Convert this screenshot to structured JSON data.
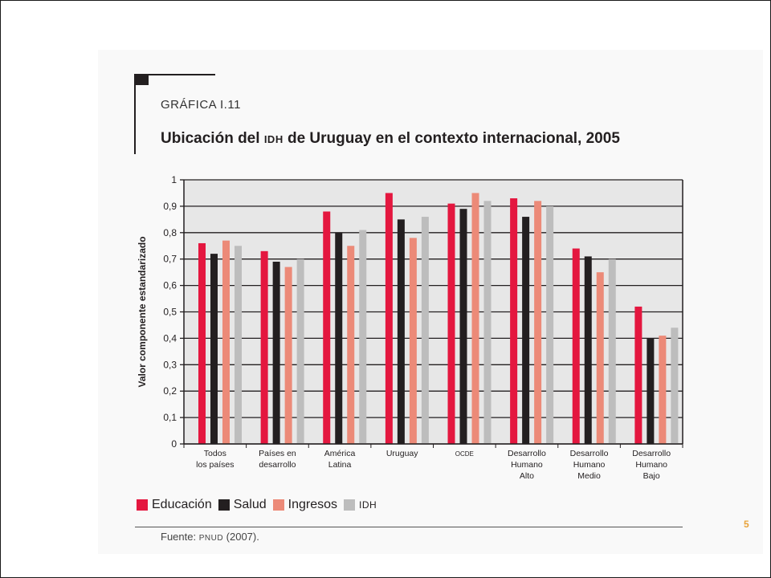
{
  "figure": {
    "label": "GRÁFICA I.11",
    "title_part1": "Ubicación del ",
    "title_part2": "IDH",
    "title_part3": " de Uruguay en el contexto internacional, 2005",
    "source_part1": "Fuente: ",
    "source_part2": "PNUD",
    "source_part3": " (2007)."
  },
  "page_number": "5",
  "colors": {
    "educacion": "#e4173f",
    "salud": "#231f20",
    "ingresos": "#ec8a78",
    "idh": "#bdbdbd",
    "plot_bg": "#e7e7e7"
  },
  "chart_data": {
    "type": "bar",
    "title": "Ubicación del IDH de Uruguay en el contexto internacional, 2005",
    "ylabel": "Valor componente estandarizado",
    "xlabel": "",
    "ylim": [
      0,
      1
    ],
    "yticks": [
      "0",
      "0,1",
      "0,2",
      "0,3",
      "0,4",
      "0,5",
      "0,6",
      "0,7",
      "0,8",
      "0,9",
      "1"
    ],
    "grid": true,
    "legend_position": "bottom",
    "categories": [
      [
        "Todos",
        "los países"
      ],
      [
        "Países en",
        "desarrollo"
      ],
      [
        "América",
        "Latina"
      ],
      [
        "Uruguay"
      ],
      [
        "OCDE"
      ],
      [
        "Desarrollo",
        "Humano",
        "Alto"
      ],
      [
        "Desarrollo",
        "Humano",
        "Medio"
      ],
      [
        "Desarrollo",
        "Humano",
        "Bajo"
      ]
    ],
    "series": [
      {
        "name": "Educación",
        "values": [
          0.76,
          0.73,
          0.88,
          0.95,
          0.91,
          0.93,
          0.74,
          0.52
        ]
      },
      {
        "name": "Salud",
        "values": [
          0.72,
          0.69,
          0.8,
          0.85,
          0.89,
          0.86,
          0.71,
          0.4
        ]
      },
      {
        "name": "Ingresos",
        "values": [
          0.77,
          0.67,
          0.75,
          0.78,
          0.95,
          0.92,
          0.65,
          0.41
        ]
      },
      {
        "name": "IDH",
        "values": [
          0.75,
          0.7,
          0.81,
          0.86,
          0.92,
          0.9,
          0.7,
          0.44
        ]
      }
    ]
  }
}
